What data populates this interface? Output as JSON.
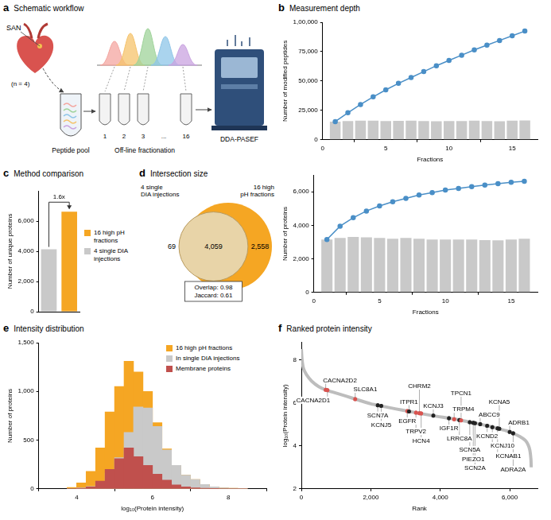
{
  "schematic": {
    "panel": "a",
    "title": "Schematic workflow",
    "tissue": "SAN",
    "n": "(n = 4)",
    "pool": "Peptide pool",
    "fractionation": "Off-line fractionation",
    "fractions": [
      "1",
      "2",
      "3",
      "...",
      "16"
    ],
    "instrument": "DDA-PASEF"
  },
  "chart_data": [
    {
      "panel": "b",
      "title": "Measurement depth",
      "type": "bar",
      "x": [
        1,
        2,
        3,
        4,
        5,
        6,
        7,
        8,
        9,
        10,
        11,
        12,
        13,
        14,
        15,
        16
      ],
      "series": [
        {
          "type": "line",
          "color": "#4a8fc7",
          "marker": "circle",
          "values": [
            15500,
            23000,
            30000,
            36500,
            42500,
            48000,
            53000,
            58000,
            63000,
            67500,
            72000,
            76500,
            80500,
            84500,
            88500,
            92500
          ]
        },
        {
          "type": "bar",
          "color": "#c9c9c9",
          "values": [
            15500,
            16000,
            16200,
            16300,
            16000,
            16100,
            16200,
            16000,
            15800,
            15900,
            16000,
            16300,
            16000,
            15800,
            16200,
            16500
          ]
        }
      ],
      "xlabel": "Fractions",
      "ylabel": "Number of modified peptides",
      "xlim": [
        0,
        17
      ],
      "xticks": [
        0,
        5,
        10,
        15
      ],
      "ylim": [
        0,
        100000
      ],
      "yticks": [
        0,
        {
          "value": 25000,
          "label": "25,000"
        },
        {
          "value": 50000,
          "label": "50,000"
        },
        {
          "value": 75000,
          "label": "75,000"
        },
        {
          "value": 100000,
          "label": "1,00,000"
        }
      ],
      "grid": false
    },
    {
      "type": "bar",
      "x": [
        1,
        2,
        3,
        4,
        5,
        6,
        7,
        8,
        9,
        10,
        11,
        12,
        13,
        14,
        15,
        16
      ],
      "series": [
        {
          "type": "line",
          "color": "#4a8fc7",
          "marker": "circle",
          "values": [
            3150,
            3950,
            4450,
            4850,
            5150,
            5400,
            5600,
            5800,
            5950,
            6100,
            6200,
            6300,
            6400,
            6480,
            6560,
            6620
          ]
        },
        {
          "type": "bar",
          "color": "#c9c9c9",
          "values": [
            3150,
            3250,
            3300,
            3280,
            3250,
            3200,
            3250,
            3200,
            3150,
            3150,
            3150,
            3150,
            3120,
            3100,
            3150,
            3200
          ]
        }
      ],
      "xlabel": "Fractions",
      "ylabel": "Number of proteins",
      "xlim": [
        0,
        17
      ],
      "xticks": [
        0,
        5,
        10,
        15
      ],
      "ylim": [
        0,
        7000
      ],
      "yticks": [
        0,
        {
          "value": 2000,
          "label": "2,000"
        },
        {
          "value": 4000,
          "label": "4,000"
        },
        {
          "value": 6000,
          "label": "6,000"
        }
      ],
      "grid": false
    },
    {
      "panel": "c",
      "title": "Method comparison",
      "type": "bar",
      "categories": [
        null,
        null
      ],
      "series": [
        {
          "name": "16 high pH fractions",
          "color": "#f5a623",
          "values": [
            null,
            6617
          ]
        },
        {
          "name": "4 single DIA injections",
          "color": "#c9c9c9",
          "values": [
            4128,
            null
          ]
        }
      ],
      "ylabel": "Number of unique proteins",
      "ylim": [
        0,
        8000
      ],
      "yticks": [
        0,
        {
          "value": 2000,
          "label": "2,000"
        },
        {
          "value": 4000,
          "label": "4,000"
        },
        {
          "value": 6000,
          "label": "6,000"
        }
      ],
      "tick_labels": "y",
      "annotations": [
        "1.6x"
      ],
      "legend": "right",
      "grid": false
    },
    {
      "panel": "d",
      "title": "Intersection size",
      "type": "venn",
      "series": [
        {
          "name": "4 single DIA injections",
          "color": "#e8d4a8"
        },
        {
          "name": "16 high pH fractions",
          "color": "#f5a623"
        }
      ],
      "values": [
        69,
        4059,
        2558
      ],
      "value_labels": [
        "69",
        "4,059",
        "2,558"
      ],
      "annotations": [
        "Overlap: 0.98",
        "Jaccard: 0.61"
      ]
    },
    {
      "panel": "e",
      "title": "Intensity distribution",
      "type": "histogram",
      "bins": [
        3.75,
        4,
        4.25,
        4.5,
        4.75,
        5,
        5.25,
        5.5,
        5.75,
        6,
        6.25,
        6.5,
        6.75,
        7,
        7.25,
        7.5,
        7.75,
        8,
        8.25,
        8.5
      ],
      "series": [
        {
          "name": "16 high pH fractions",
          "color": "#f5a623",
          "values": [
            15,
            60,
            180,
            420,
            790,
            1050,
            1310,
            1200,
            1000,
            680,
            410,
            240,
            140,
            95,
            45,
            20,
            10,
            5,
            3
          ]
        },
        {
          "name": "In single DIA injections",
          "color": "#c9c9c9",
          "values": [
            0,
            10,
            25,
            70,
            160,
            320,
            580,
            840,
            830,
            640,
            400,
            240,
            140,
            95,
            45,
            20,
            10,
            5,
            3
          ]
        },
        {
          "name": "Membrane proteins",
          "color": "#c0504d",
          "values": [
            0,
            5,
            20,
            80,
            200,
            310,
            420,
            330,
            240,
            150,
            90,
            40,
            20,
            10,
            5,
            2,
            0,
            0,
            0
          ]
        }
      ],
      "xlabel": "log₁₀(Protein intensity)",
      "ylabel": "Number of proteins",
      "xlim": [
        3,
        9
      ],
      "xticks": [
        4,
        6,
        8
      ],
      "ylim": [
        0,
        1500
      ],
      "yticks": [
        0,
        500,
        {
          "value": 1000,
          "label": "1,000"
        },
        {
          "value": 1500,
          "label": "1,500"
        }
      ],
      "legend": "top right",
      "grid": false
    },
    {
      "panel": "f",
      "title": "Ranked protein intensity",
      "type": "line",
      "x": [
        0,
        20,
        60,
        150,
        300,
        500,
        700,
        1000,
        1300,
        1600,
        2000,
        2300,
        2700,
        3100,
        3500,
        3900,
        4300,
        4700,
        5000,
        5300,
        5600,
        5900,
        6100,
        6300,
        6450,
        6530,
        6580,
        6610,
        6620
      ],
      "values": [
        8.5,
        8.0,
        7.6,
        7.3,
        7.0,
        6.75,
        6.6,
        6.45,
        6.3,
        6.15,
        5.95,
        5.85,
        5.72,
        5.6,
        5.48,
        5.37,
        5.27,
        5.15,
        5.05,
        4.95,
        4.83,
        4.7,
        4.58,
        4.42,
        4.25,
        4.05,
        3.8,
        3.4,
        3.0
      ],
      "color": "#bdbdbd",
      "xlabel": "Rank",
      "ylabel": "log₁₀(Protein intensity)",
      "xlim": [
        0,
        6800
      ],
      "xticks": [
        0,
        {
          "value": 2000,
          "label": "2,000"
        },
        {
          "value": 4000,
          "label": "4,000"
        },
        {
          "value": 6000,
          "label": "6,000"
        }
      ],
      "ylim": [
        2,
        8.8
      ],
      "yticks": [
        2,
        4,
        6,
        8
      ],
      "annotations": [
        {
          "text": "CACNA2D2",
          "x": 700,
          "y": 6.6,
          "color": "#d9534f"
        },
        {
          "text": "CACNA2D1",
          "x": 750,
          "y": 6.58,
          "color": "#d9534f"
        },
        {
          "text": "SLC8A1",
          "x": 1550,
          "y": 6.17,
          "color": "#d9534f"
        },
        {
          "text": "SCN7A",
          "x": 2200,
          "y": 5.88,
          "color": "#222222"
        },
        {
          "text": "KCNJ5",
          "x": 2300,
          "y": 5.85,
          "color": "#222222"
        },
        {
          "text": "EGFR",
          "x": 3050,
          "y": 5.61,
          "color": "#d9534f"
        },
        {
          "text": "ITPR1",
          "x": 3100,
          "y": 5.6,
          "color": "#222222"
        },
        {
          "text": "TRPV2",
          "x": 3300,
          "y": 5.54,
          "color": "#d9534f"
        },
        {
          "text": "CHRM2",
          "x": 3400,
          "y": 5.51,
          "color": "#d9534f"
        },
        {
          "text": "HCN4",
          "x": 3450,
          "y": 5.5,
          "color": "#d9534f"
        },
        {
          "text": "KCNJ3",
          "x": 3800,
          "y": 5.4,
          "color": "#222222"
        },
        {
          "text": "IGF1R",
          "x": 4250,
          "y": 5.28,
          "color": "#222222"
        },
        {
          "text": "TRPM4",
          "x": 4400,
          "y": 5.24,
          "color": "#d9534f"
        },
        {
          "text": "LRRC8A",
          "x": 4550,
          "y": 5.2,
          "color": "#222222"
        },
        {
          "text": "TPCN1",
          "x": 4600,
          "y": 5.18,
          "color": "#d9534f"
        },
        {
          "text": "SCN5A",
          "x": 4850,
          "y": 5.1,
          "color": "#222222"
        },
        {
          "text": "PIEZO1",
          "x": 4950,
          "y": 5.07,
          "color": "#222222"
        },
        {
          "text": "SCN2A",
          "x": 5000,
          "y": 5.05,
          "color": "#222222"
        },
        {
          "text": "ABCC9",
          "x": 5150,
          "y": 5.0,
          "color": "#222222"
        },
        {
          "text": "KCND2",
          "x": 5350,
          "y": 4.93,
          "color": "#222222"
        },
        {
          "text": "KCNJ10",
          "x": 5500,
          "y": 4.87,
          "color": "#222222"
        },
        {
          "text": "KCNAB1",
          "x": 5650,
          "y": 4.81,
          "color": "#222222"
        },
        {
          "text": "KCNA5",
          "x": 5700,
          "y": 4.79,
          "color": "#222222"
        },
        {
          "text": "ADRB1",
          "x": 6000,
          "y": 4.64,
          "color": "#222222"
        },
        {
          "text": "ADRA2A",
          "x": 6100,
          "y": 4.58,
          "color": "#222222"
        }
      ],
      "grid": false
    }
  ]
}
